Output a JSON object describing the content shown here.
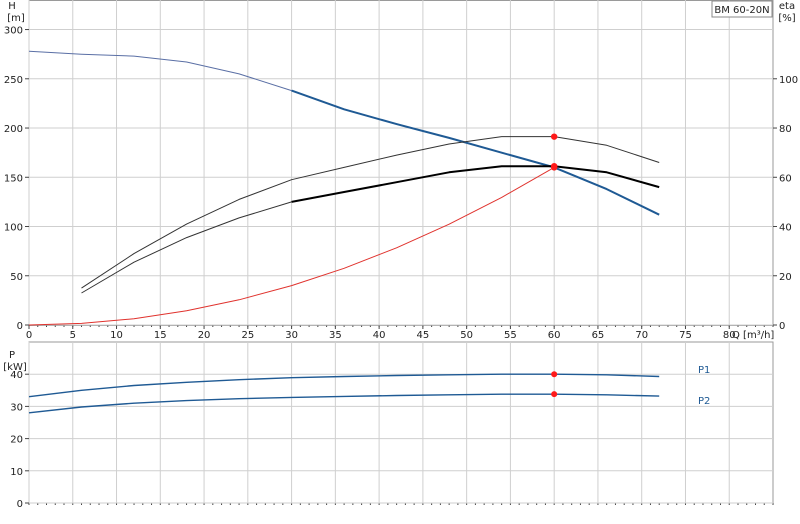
{
  "model_label": "BM 60-20N",
  "chart_data": [
    {
      "id": "upper",
      "type": "line",
      "x_axis": {
        "label": "Q [m³/h]",
        "range": [
          0,
          85
        ],
        "ticks": [
          0,
          5,
          10,
          15,
          20,
          25,
          30,
          35,
          40,
          45,
          50,
          55,
          60,
          65,
          70,
          75,
          80
        ]
      },
      "y_left": {
        "label_line1": "H",
        "label_line2": "[m]",
        "range": [
          0,
          330
        ],
        "ticks": [
          0,
          50,
          100,
          150,
          200,
          250,
          300
        ]
      },
      "y_right": {
        "label_line1": "eta",
        "label_line2": "[%]",
        "range": [
          0,
          132
        ],
        "ticks": [
          0,
          20,
          40,
          60,
          80,
          100
        ]
      },
      "series": [
        {
          "key": "H_full",
          "axis": "left",
          "color": "#5a6fa5",
          "width": 1,
          "x": [
            0,
            6,
            12,
            18,
            24,
            30
          ],
          "y": [
            278,
            275,
            273,
            267,
            255,
            238
          ]
        },
        {
          "key": "H_range",
          "axis": "left",
          "color": "#1f5a94",
          "width": 2,
          "x": [
            30,
            36,
            42,
            48,
            54,
            60,
            66,
            72
          ],
          "y": [
            238,
            219,
            204,
            190,
            175,
            160,
            138,
            112
          ]
        },
        {
          "key": "eta_full",
          "axis": "right",
          "color": "#333333",
          "width": 1,
          "x": [
            6,
            12,
            18,
            24,
            30,
            36,
            42,
            48,
            54,
            60,
            66,
            72
          ],
          "y": [
            15,
            29,
            41,
            51,
            59,
            64,
            69,
            73.5,
            76.5,
            76.5,
            73,
            66
          ]
        },
        {
          "key": "eta_lower",
          "axis": "right",
          "color": "#333333",
          "width": 1,
          "x": [
            6,
            12,
            18,
            24,
            30
          ],
          "y": [
            13,
            25.5,
            35.5,
            43.5,
            50
          ]
        },
        {
          "key": "eta_range",
          "axis": "right",
          "color": "#000000",
          "width": 2,
          "x": [
            30,
            36,
            42,
            48,
            54,
            60,
            66,
            72
          ],
          "y": [
            50,
            54,
            58,
            62,
            64.5,
            64.5,
            62,
            56
          ]
        },
        {
          "key": "parabola",
          "axis": "left",
          "color": "#e0322d",
          "width": 1,
          "x": [
            0,
            6,
            12,
            18,
            24,
            30,
            36,
            42,
            48,
            54,
            60
          ],
          "y": [
            0,
            1.6,
            6.4,
            14.4,
            25.6,
            40,
            57.6,
            78.4,
            102.4,
            129.6,
            160
          ]
        }
      ],
      "duty_points": [
        {
          "x": 60,
          "y": 160,
          "axis": "left"
        },
        {
          "x": 60,
          "y": 76.5,
          "axis": "right"
        },
        {
          "x": 60,
          "y": 64.5,
          "axis": "right"
        }
      ]
    },
    {
      "id": "lower",
      "type": "line",
      "x_axis": {
        "range": [
          0,
          85
        ],
        "ticks": [
          0,
          5,
          10,
          15,
          20,
          25,
          30,
          35,
          40,
          45,
          50,
          55,
          60,
          65,
          70,
          75,
          80
        ]
      },
      "y_left": {
        "label_line1": "P",
        "label_line2": "[kW]",
        "range": [
          0,
          50
        ],
        "ticks": [
          0,
          10,
          20,
          30,
          40
        ]
      },
      "series": [
        {
          "name": "P1",
          "color": "#1f5a94",
          "x": [
            0,
            6,
            12,
            18,
            24,
            30,
            36,
            42,
            48,
            54,
            60,
            66,
            72
          ],
          "y": [
            33,
            35,
            36.5,
            37.5,
            38.3,
            38.9,
            39.3,
            39.6,
            39.8,
            40,
            40,
            39.8,
            39.3
          ]
        },
        {
          "name": "P2",
          "color": "#1f5a94",
          "x": [
            0,
            6,
            12,
            18,
            24,
            30,
            36,
            42,
            48,
            54,
            60,
            66,
            72
          ],
          "y": [
            28,
            29.8,
            31,
            31.8,
            32.4,
            32.8,
            33.1,
            33.4,
            33.6,
            33.8,
            33.8,
            33.6,
            33.2
          ]
        }
      ],
      "duty_points": [
        {
          "x": 60,
          "y": 40
        },
        {
          "x": 60,
          "y": 33.8
        }
      ],
      "legend": [
        {
          "label": "P1",
          "at_y": 40
        },
        {
          "label": "P2",
          "at_y": 33.2
        }
      ]
    }
  ]
}
